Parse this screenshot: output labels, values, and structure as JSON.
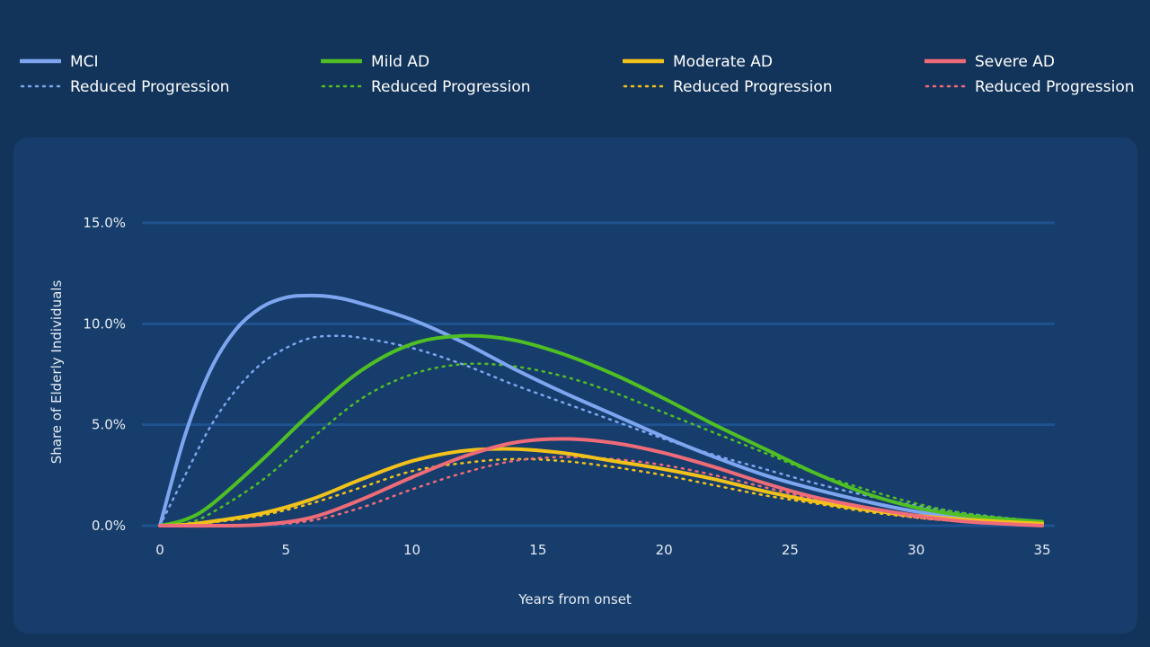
{
  "chart_data": {
    "type": "line",
    "title": "",
    "xlabel": "Years from onset",
    "ylabel": "Share of Elderly Individuals",
    "xlim": [
      0,
      35
    ],
    "ylim": [
      0,
      15
    ],
    "x_ticks": [
      0,
      5,
      10,
      15,
      20,
      25,
      30,
      35
    ],
    "x_tick_labels": [
      "0",
      "5",
      "10",
      "15",
      "20",
      "25",
      "30",
      "35"
    ],
    "y_ticks": [
      0,
      5,
      10,
      15
    ],
    "y_tick_labels": [
      "0.0%",
      "5.0%",
      "10.0%",
      "15.0%"
    ],
    "grid": "horizontal",
    "legend_position": "top",
    "series": [
      {
        "name": "MCI",
        "color": "#7ea6f0",
        "style": "solid",
        "x": [
          0,
          1,
          2,
          3,
          4,
          5,
          6,
          7,
          8,
          10,
          12,
          14,
          16,
          18,
          20,
          22,
          24,
          26,
          28,
          30,
          32,
          35
        ],
        "y": [
          0,
          4.5,
          7.7,
          9.7,
          10.8,
          11.3,
          11.4,
          11.3,
          11.0,
          10.2,
          9.1,
          7.8,
          6.6,
          5.5,
          4.4,
          3.4,
          2.5,
          1.8,
          1.2,
          0.7,
          0.4,
          0.1
        ]
      },
      {
        "name": "Reduced Progression",
        "color": "#7ea6f0",
        "style": "dotted",
        "x": [
          0,
          1,
          2,
          3,
          4,
          5,
          6,
          7,
          8,
          10,
          12,
          14,
          16,
          18,
          20,
          22,
          24,
          26,
          28,
          30,
          32,
          35
        ],
        "y": [
          0,
          2.5,
          4.9,
          6.7,
          8.0,
          8.8,
          9.3,
          9.4,
          9.3,
          8.8,
          8.0,
          7.0,
          6.1,
          5.2,
          4.3,
          3.5,
          2.8,
          2.1,
          1.5,
          1.0,
          0.6,
          0.2
        ]
      },
      {
        "name": "Mild AD",
        "color": "#4fbf24",
        "style": "solid",
        "x": [
          0,
          1,
          2,
          4,
          6,
          8,
          10,
          12,
          14,
          16,
          18,
          20,
          22,
          24,
          26,
          28,
          30,
          32,
          35
        ],
        "y": [
          0,
          0.3,
          1.0,
          3.2,
          5.6,
          7.7,
          9.0,
          9.4,
          9.2,
          8.5,
          7.5,
          6.3,
          5.0,
          3.8,
          2.6,
          1.6,
          0.9,
          0.5,
          0.2
        ]
      },
      {
        "name": "Reduced Progression",
        "color": "#4fbf24",
        "style": "dotted",
        "x": [
          0,
          1,
          2,
          4,
          6,
          8,
          10,
          12,
          14,
          16,
          18,
          20,
          22,
          24,
          26,
          28,
          30,
          32,
          35
        ],
        "y": [
          0,
          0.1,
          0.6,
          2.2,
          4.3,
          6.3,
          7.5,
          8.0,
          7.9,
          7.4,
          6.6,
          5.6,
          4.6,
          3.6,
          2.6,
          1.8,
          1.1,
          0.6,
          0.2
        ]
      },
      {
        "name": "Moderate AD",
        "color": "#f2c21b",
        "style": "solid",
        "x": [
          0,
          1,
          2,
          4,
          6,
          8,
          10,
          12,
          14,
          16,
          18,
          20,
          22,
          24,
          26,
          28,
          30,
          32,
          35
        ],
        "y": [
          0,
          0.05,
          0.2,
          0.6,
          1.3,
          2.3,
          3.2,
          3.7,
          3.8,
          3.6,
          3.2,
          2.8,
          2.3,
          1.7,
          1.2,
          0.8,
          0.5,
          0.3,
          0.1
        ]
      },
      {
        "name": "Reduced Progression",
        "color": "#f2c21b",
        "style": "dotted",
        "x": [
          0,
          1,
          2,
          4,
          6,
          8,
          10,
          12,
          14,
          16,
          18,
          20,
          22,
          24,
          26,
          28,
          30,
          32,
          35
        ],
        "y": [
          0,
          0.03,
          0.15,
          0.5,
          1.1,
          1.9,
          2.7,
          3.1,
          3.3,
          3.2,
          2.9,
          2.5,
          2.0,
          1.5,
          1.1,
          0.7,
          0.4,
          0.2,
          0.05
        ]
      },
      {
        "name": "Severe AD",
        "color": "#ef6b78",
        "style": "solid",
        "x": [
          0,
          2,
          4,
          6,
          8,
          10,
          12,
          14,
          16,
          18,
          20,
          22,
          24,
          26,
          28,
          30,
          32,
          35
        ],
        "y": [
          0,
          0,
          0.05,
          0.4,
          1.3,
          2.4,
          3.4,
          4.1,
          4.3,
          4.1,
          3.6,
          2.9,
          2.1,
          1.4,
          0.9,
          0.5,
          0.2,
          0.0
        ]
      },
      {
        "name": "Reduced Progression",
        "color": "#ef6b78",
        "style": "dotted",
        "x": [
          0,
          2,
          4,
          6,
          8,
          10,
          12,
          14,
          16,
          18,
          20,
          22,
          24,
          26,
          28,
          30,
          32,
          35
        ],
        "y": [
          0,
          0,
          0.03,
          0.25,
          0.9,
          1.8,
          2.6,
          3.2,
          3.4,
          3.3,
          3.0,
          2.5,
          1.9,
          1.3,
          0.8,
          0.4,
          0.2,
          0.0
        ]
      }
    ]
  },
  "legend": {
    "groups": [
      {
        "main": "MCI",
        "reduced": "Reduced Progression",
        "color": "#7ea6f0"
      },
      {
        "main": "Mild AD",
        "reduced": "Reduced Progression",
        "color": "#4fbf24"
      },
      {
        "main": "Moderate AD",
        "reduced": "Reduced Progression",
        "color": "#f2c21b"
      },
      {
        "main": "Severe AD",
        "reduced": "Reduced Progression",
        "color": "#ef6b78"
      }
    ]
  }
}
